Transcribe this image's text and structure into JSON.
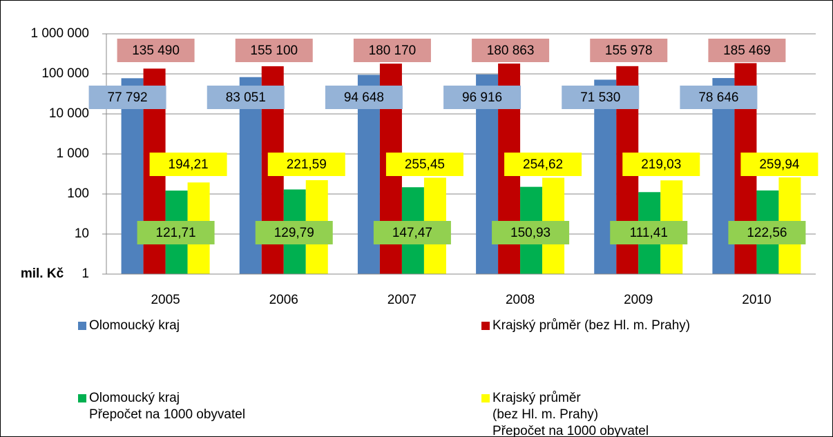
{
  "chart_data": {
    "type": "bar",
    "log": true,
    "grid": true,
    "ylabel": "mil. Kč",
    "categories": [
      "2005",
      "2006",
      "2007",
      "2008",
      "2009",
      "2010"
    ],
    "ylim": [
      1,
      1000000
    ],
    "yticks": [
      1,
      10,
      100,
      {
        "value": 1000,
        "label": "1 000"
      },
      {
        "value": 10000,
        "label": "10 000"
      },
      {
        "value": 100000,
        "label": "100 000"
      },
      {
        "value": 1000000,
        "label": "1 000 000"
      }
    ],
    "series": [
      {
        "name": "Olomoucký kraj",
        "color": "#4f81bd",
        "label_color": "#95b3d7",
        "values": [
          77792,
          83051,
          94648,
          96916,
          71530,
          78646
        ],
        "value_labels": [
          "77 792",
          "83 051",
          "94 648",
          "96 916",
          "71 530",
          "78 646"
        ]
      },
      {
        "name": "Krajský průměr (bez Hl. m. Prahy)",
        "color": "#c00000",
        "label_color": "#d99694",
        "values": [
          135490,
          155100,
          180170,
          180863,
          155978,
          185469
        ],
        "value_labels": [
          "135 490",
          "155 100",
          "180 170",
          "180 863",
          "155 978",
          "185 469"
        ]
      },
      {
        "name": "Olomoucký kraj\nPřepočet na 1000 obyvatel",
        "color": "#00b050",
        "label_color": "#92d050",
        "values": [
          121.71,
          129.79,
          147.47,
          150.93,
          111.41,
          122.56
        ],
        "value_labels": [
          "121,71",
          "129,79",
          "147,47",
          "150,93",
          "111,41",
          "122,56"
        ]
      },
      {
        "name": "Krajský průměr\n(bez Hl. m. Prahy)\nPřepočet na 1000 obyvatel",
        "color": "#ffff00",
        "label_color": "#ffff00",
        "values": [
          194.21,
          221.59,
          255.45,
          254.62,
          219.03,
          259.94
        ],
        "value_labels": [
          "194,21",
          "221,59",
          "255,45",
          "254,62",
          "219,03",
          "259,94"
        ]
      }
    ]
  }
}
